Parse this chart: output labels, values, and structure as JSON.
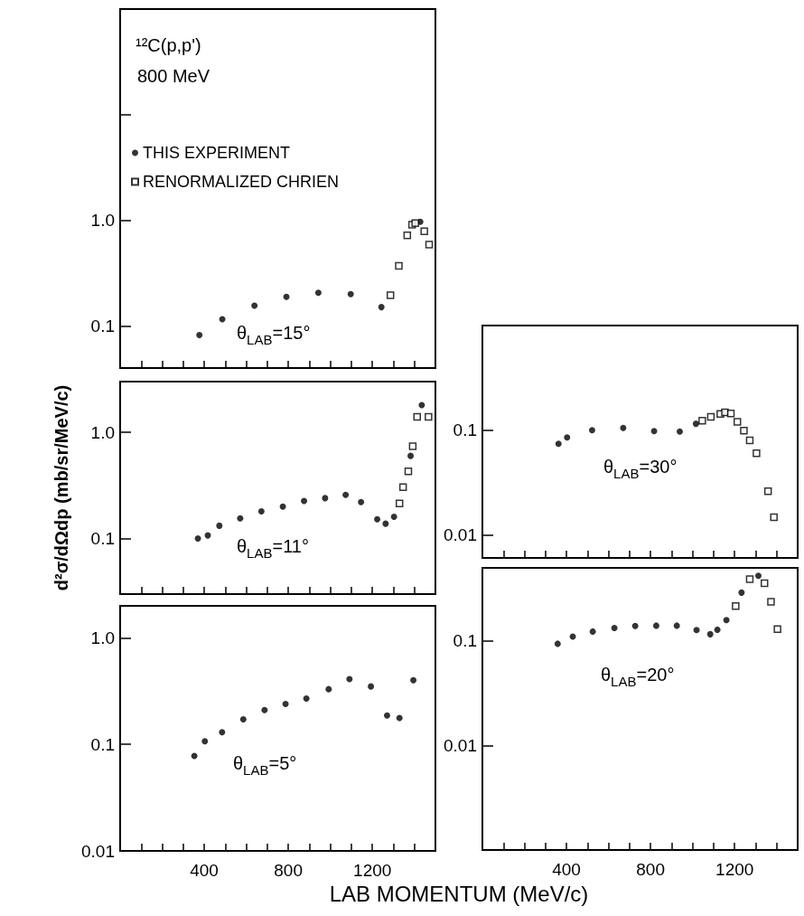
{
  "chart_data": [
    {
      "type": "scatter",
      "annotations": [
        "¹²C(p,p')",
        "800 MeV",
        "θ$_{LAB}$=15°"
      ],
      "legend": "top left",
      "log": "y",
      "grid": false,
      "tick_labels": "y",
      "xlim": [
        0,
        1500
      ],
      "ylim": [
        0.04,
        100
      ],
      "xticks": [
        {
          "value": 100,
          "label": null
        },
        {
          "value": 200,
          "label": null
        },
        {
          "value": 300,
          "label": null
        },
        {
          "value": 400,
          "label": null
        },
        {
          "value": 500,
          "label": null
        },
        {
          "value": 600,
          "label": null
        },
        {
          "value": 700,
          "label": null
        },
        {
          "value": 800,
          "label": null
        },
        {
          "value": 900,
          "label": null
        },
        {
          "value": 1000,
          "label": null
        },
        {
          "value": 1100,
          "label": null
        },
        {
          "value": 1200,
          "label": null
        },
        {
          "value": 1300,
          "label": null
        },
        {
          "value": 1400,
          "label": null
        }
      ],
      "yticks": [
        {
          "value": 0.1,
          "label": "0.1"
        },
        {
          "value": 1,
          "label": "1.0"
        },
        {
          "value": 10,
          "label": null
        }
      ],
      "series": [
        {
          "name": "THIS EXPERIMENT",
          "color": "#000000",
          "marker": "circle",
          "x": [
            377,
            486,
            639,
            791,
            943,
            1097,
            1243,
            1428
          ],
          "values": [
            0.082,
            0.116,
            0.156,
            0.189,
            0.206,
            0.2,
            0.151,
            0.97
          ]
        },
        {
          "name": "RENORMALIZED CHRIEN",
          "color": "#000000",
          "marker": "square",
          "x": [
            1286,
            1326,
            1366,
            1389,
            1404,
            1447,
            1470
          ],
          "values": [
            0.195,
            0.37,
            0.72,
            0.91,
            0.94,
            0.79,
            0.59
          ]
        }
      ]
    },
    {
      "type": "scatter",
      "annotations": [
        "θ$_{LAB}$=11°"
      ],
      "ylabel": "d²σ/dΩdp (mb/sr/MeV/c)",
      "log": "y",
      "grid": false,
      "tick_labels": "y",
      "xlim": [
        0,
        1500
      ],
      "ylim": [
        0.03,
        3
      ],
      "xticks": [
        {
          "value": 100,
          "label": null
        },
        {
          "value": 200,
          "label": null
        },
        {
          "value": 300,
          "label": null
        },
        {
          "value": 400,
          "label": null
        },
        {
          "value": 500,
          "label": null
        },
        {
          "value": 600,
          "label": null
        },
        {
          "value": 700,
          "label": null
        },
        {
          "value": 800,
          "label": null
        },
        {
          "value": 900,
          "label": null
        },
        {
          "value": 1000,
          "label": null
        },
        {
          "value": 1100,
          "label": null
        },
        {
          "value": 1200,
          "label": null
        },
        {
          "value": 1300,
          "label": null
        },
        {
          "value": 1400,
          "label": null
        }
      ],
      "yticks": [
        {
          "value": 0.1,
          "label": "0.1"
        },
        {
          "value": 1,
          "label": "1.0"
        }
      ],
      "series": [
        {
          "color": "#000000",
          "marker": "circle",
          "x": [
            370,
            417,
            472,
            571,
            672,
            774,
            875,
            975,
            1073,
            1146,
            1223,
            1263,
            1303,
            1382,
            1435
          ],
          "values": [
            0.1,
            0.107,
            0.132,
            0.155,
            0.18,
            0.2,
            0.226,
            0.24,
            0.258,
            0.22,
            0.152,
            0.138,
            0.16,
            0.6,
            1.8
          ]
        },
        {
          "color": "#000000",
          "marker": "square",
          "x": [
            1329,
            1346,
            1371,
            1392,
            1413,
            1467
          ],
          "values": [
            0.214,
            0.305,
            0.43,
            0.74,
            1.4,
            1.4
          ]
        }
      ]
    },
    {
      "type": "scatter",
      "annotations": [
        "θ$_{LAB}$=5°"
      ],
      "xlabel": "LAB MOMENTUM (MeV/c)",
      "log": "y",
      "grid": false,
      "xlim": [
        0,
        1500
      ],
      "ylim": [
        0.01,
        2
      ],
      "xticks": [
        {
          "value": 100,
          "label": null
        },
        {
          "value": 200,
          "label": null
        },
        {
          "value": 300,
          "label": null
        },
        {
          "value": 400,
          "label": "400"
        },
        {
          "value": 500,
          "label": null
        },
        {
          "value": 600,
          "label": null
        },
        {
          "value": 700,
          "label": null
        },
        {
          "value": 800,
          "label": "800"
        },
        {
          "value": 900,
          "label": null
        },
        {
          "value": 1000,
          "label": null
        },
        {
          "value": 1100,
          "label": null
        },
        {
          "value": 1200,
          "label": "1200"
        },
        {
          "value": 1300,
          "label": null
        },
        {
          "value": 1400,
          "label": null
        }
      ],
      "yticks": [
        {
          "value": 0.01,
          "label": "0.01"
        },
        {
          "value": 0.1,
          "label": "0.1"
        },
        {
          "value": 1,
          "label": "1.0"
        }
      ],
      "series": [
        {
          "color": "#000000",
          "marker": "circle",
          "x": [
            353,
            403,
            485,
            586,
            687,
            787,
            886,
            992,
            1091,
            1193,
            1270,
            1329,
            1395
          ],
          "values": [
            0.078,
            0.107,
            0.13,
            0.172,
            0.21,
            0.24,
            0.27,
            0.33,
            0.41,
            0.35,
            0.187,
            0.177,
            0.4
          ]
        }
      ]
    },
    {
      "type": "scatter",
      "annotations": [
        "θ$_{LAB}$=30°"
      ],
      "log": "y",
      "grid": false,
      "tick_labels": "y",
      "xlim": [
        0,
        1500
      ],
      "ylim": [
        0.006,
        1
      ],
      "xticks": [
        {
          "value": 100,
          "label": null
        },
        {
          "value": 200,
          "label": null
        },
        {
          "value": 300,
          "label": null
        },
        {
          "value": 400,
          "label": null
        },
        {
          "value": 500,
          "label": null
        },
        {
          "value": 600,
          "label": null
        },
        {
          "value": 700,
          "label": null
        },
        {
          "value": 800,
          "label": null
        },
        {
          "value": 900,
          "label": null
        },
        {
          "value": 1000,
          "label": null
        },
        {
          "value": 1100,
          "label": null
        },
        {
          "value": 1200,
          "label": null
        },
        {
          "value": 1300,
          "label": null
        },
        {
          "value": 1400,
          "label": null
        }
      ],
      "yticks": [
        {
          "value": 0.01,
          "label": "0.01"
        },
        {
          "value": 0.1,
          "label": "0.1"
        }
      ],
      "series": [
        {
          "color": "#000000",
          "marker": "circle",
          "x": [
            362,
            403,
            522,
            670,
            817,
            939,
            1016
          ],
          "values": [
            0.074,
            0.085,
            0.1,
            0.105,
            0.098,
            0.097,
            0.115
          ]
        },
        {
          "color": "#000000",
          "marker": "square",
          "x": [
            1046,
            1087,
            1132,
            1154,
            1182,
            1213,
            1244,
            1272,
            1304,
            1359,
            1387
          ],
          "values": [
            0.123,
            0.134,
            0.143,
            0.148,
            0.144,
            0.12,
            0.099,
            0.08,
            0.06,
            0.026,
            0.0147
          ]
        }
      ]
    },
    {
      "type": "scatter",
      "annotations": [
        "θ$_{LAB}$=20°"
      ],
      "log": "y",
      "grid": false,
      "xlim": [
        0,
        1500
      ],
      "ylim": [
        0.001,
        0.5
      ],
      "xticks": [
        {
          "value": 100,
          "label": null
        },
        {
          "value": 200,
          "label": null
        },
        {
          "value": 300,
          "label": null
        },
        {
          "value": 400,
          "label": "400"
        },
        {
          "value": 500,
          "label": null
        },
        {
          "value": 600,
          "label": null
        },
        {
          "value": 700,
          "label": null
        },
        {
          "value": 800,
          "label": "800"
        },
        {
          "value": 900,
          "label": null
        },
        {
          "value": 1000,
          "label": null
        },
        {
          "value": 1100,
          "label": null
        },
        {
          "value": 1200,
          "label": "1200"
        },
        {
          "value": 1300,
          "label": null
        },
        {
          "value": 1400,
          "label": null
        }
      ],
      "yticks": [
        {
          "value": 0.01,
          "label": "0.01"
        },
        {
          "value": 0.1,
          "label": "0.1"
        }
      ],
      "series": [
        {
          "color": "#000000",
          "marker": "circle",
          "x": [
            358,
            430,
            525,
            628,
            727,
            827,
            925,
            1019,
            1084,
            1118,
            1161,
            1233,
            1313
          ],
          "values": [
            0.094,
            0.11,
            0.123,
            0.133,
            0.139,
            0.14,
            0.14,
            0.127,
            0.116,
            0.128,
            0.158,
            0.29,
            0.42
          ]
        },
        {
          "color": "#000000",
          "marker": "square",
          "x": [
            1205,
            1272,
            1342,
            1373,
            1404
          ],
          "values": [
            0.216,
            0.39,
            0.356,
            0.237,
            0.13
          ]
        }
      ]
    }
  ]
}
